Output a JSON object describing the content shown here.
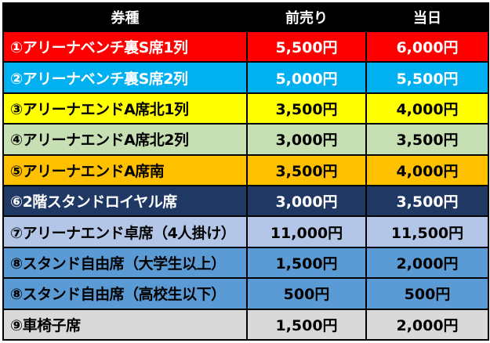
{
  "table": {
    "headers": {
      "ticket_type": "券種",
      "advance": "前売り",
      "door": "当日"
    },
    "rows": [
      {
        "name": "①アリーナベンチ裏S席1列",
        "advance": "5,500円",
        "door": "6,000円",
        "bg": "#ff0000",
        "fg": "#ffffff"
      },
      {
        "name": "②アリーナベンチ裏S席2列",
        "advance": "5,000円",
        "door": "5,500円",
        "bg": "#00b0f0",
        "fg": "#ffffff"
      },
      {
        "name": "③アリーナエンドA席北1列",
        "advance": "3,500円",
        "door": "4,000円",
        "bg": "#ffff00",
        "fg": "#000000"
      },
      {
        "name": "④アリーナエンドA席北2列",
        "advance": "3,000円",
        "door": "3,500円",
        "bg": "#c6e0b4",
        "fg": "#000000"
      },
      {
        "name": "⑤アリーナエンドA席南",
        "advance": "3,500円",
        "door": "4,000円",
        "bg": "#ffc000",
        "fg": "#000000"
      },
      {
        "name": "⑥2階スタンドロイヤル席",
        "advance": "3,000円",
        "door": "3,500円",
        "bg": "#203864",
        "fg": "#ffffff"
      },
      {
        "name": "⑦アリーナエンド卓席（4人掛け）",
        "advance": "11,000円",
        "door": "11,500円",
        "bg": "#b4c6e7",
        "fg": "#000000"
      },
      {
        "name": "⑧スタンド自由席（大学生以上）",
        "advance": "1,500円",
        "door": "2,000円",
        "bg": "#5b9bd5",
        "fg": "#000000"
      },
      {
        "name": "⑧スタンド自由席（高校生以下）",
        "advance": "500円",
        "door": "500円",
        "bg": "#5b9bd5",
        "fg": "#000000"
      },
      {
        "name": "⑨車椅子席",
        "advance": "1,500円",
        "door": "2,000円",
        "bg": "#d9d9d9",
        "fg": "#000000"
      }
    ]
  }
}
